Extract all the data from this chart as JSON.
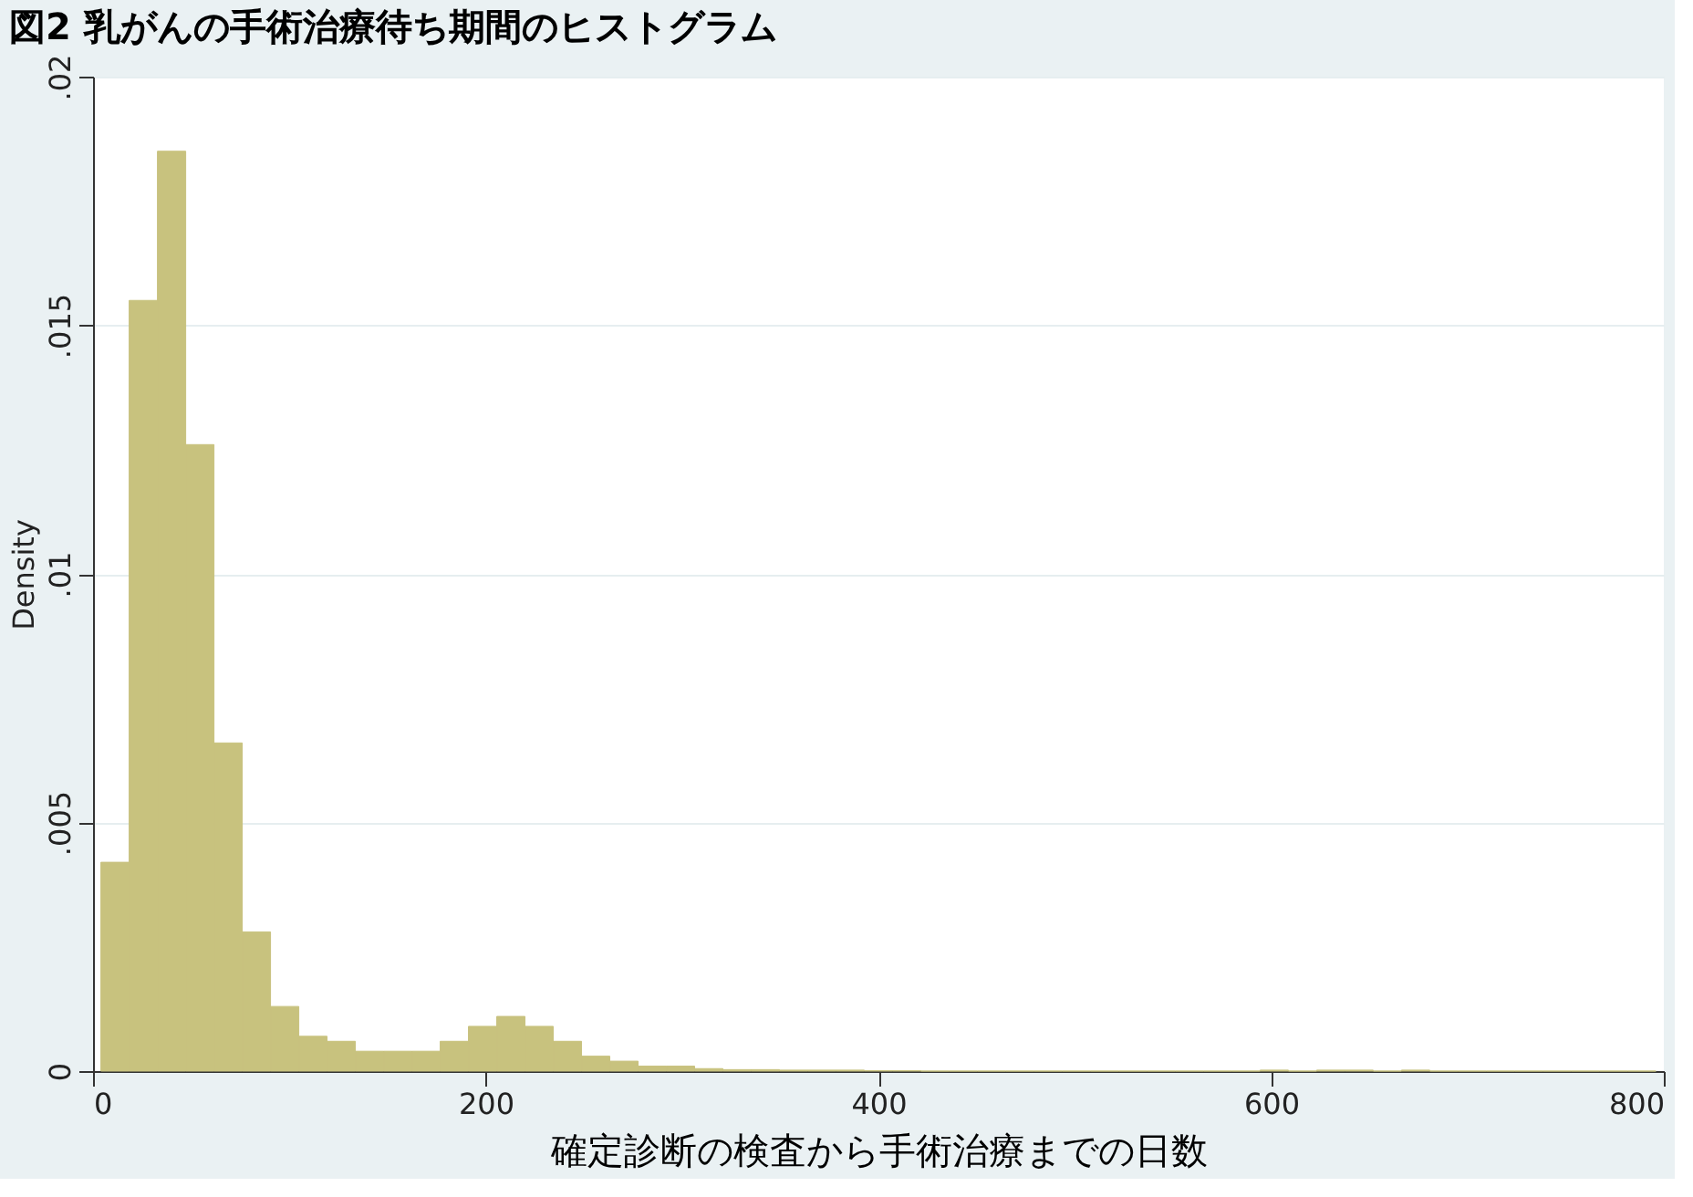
{
  "chart_data": {
    "type": "histogram",
    "title": "図2 乳がんの手術治療待ち期間のヒストグラム",
    "xlabel": "確定診断の検査から手術治療までの日数",
    "ylabel": "Density",
    "color": "#c8c27e",
    "bins": [
      4,
      18.4,
      32.8,
      47.2,
      61.6,
      76,
      90.4,
      104.8,
      119.2,
      133.6,
      148,
      162.4,
      176.8,
      191.2,
      205.6,
      220,
      234.4,
      248.8,
      263.2,
      277.6,
      292,
      306.4,
      320.8,
      335.2,
      349.6,
      364,
      378.4,
      392.8,
      407.2,
      421.6,
      436,
      450.4,
      464.8,
      479.2,
      493.6,
      508,
      522.4,
      536.8,
      551.2,
      565.6,
      580,
      594.4,
      608.8,
      623.2,
      637.6,
      652,
      666.4,
      680.8,
      695.2,
      709.6,
      724,
      738.4,
      752.8,
      767.2,
      781.6,
      796
    ],
    "values": [
      0.0042,
      0.0155,
      0.0185,
      0.0126,
      0.0066,
      0.0028,
      0.0013,
      0.0007,
      0.0006,
      0.0004,
      0.0004,
      0.0004,
      0.0006,
      0.0009,
      0.0011,
      0.0009,
      0.0006,
      0.0003,
      0.0002,
      0.0001,
      0.0001,
      5e-05,
      3e-05,
      3e-05,
      2e-05,
      2e-05,
      2e-05,
      1e-05,
      1e-05,
      0,
      0,
      0,
      0,
      0,
      0,
      0,
      0,
      0,
      0,
      0,
      0,
      2e-05,
      0,
      2e-05,
      2e-05,
      0,
      2e-05,
      0,
      0,
      0,
      0,
      0,
      0,
      0,
      0
    ],
    "xlim": [
      0,
      800
    ],
    "xticks": [
      0,
      200,
      400,
      600,
      800
    ],
    "ylim": [
      0,
      0.02
    ],
    "yticks": [
      {
        "value": 0,
        "label": "0"
      },
      {
        "value": 0.005,
        "label": ".005"
      },
      {
        "value": 0.01,
        "label": ".01"
      },
      {
        "value": 0.015,
        "label": ".015"
      },
      {
        "value": 0.02,
        "label": ".02"
      }
    ],
    "grid": "y"
  }
}
